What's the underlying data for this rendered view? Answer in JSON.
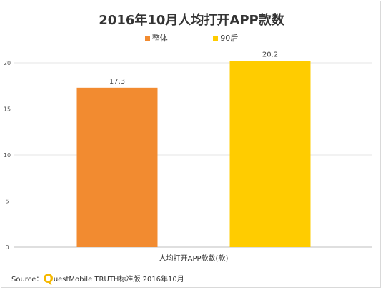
{
  "chart_data": {
    "type": "bar",
    "title": "2016年10月人均打开APP款数",
    "xlabel": "人均打开APP款数(款)",
    "ylabel": "",
    "ylim": [
      0,
      20
    ],
    "yticks": [
      0,
      5,
      10,
      15,
      20
    ],
    "grid": true,
    "legend_position": "top",
    "categories": [
      "人均打开APP款数(款)"
    ],
    "series": [
      {
        "name": "整体",
        "values": [
          17.3
        ],
        "color": "#f28b30"
      },
      {
        "name": "90后",
        "values": [
          20.2
        ],
        "color": "#ffcc00"
      }
    ]
  },
  "source": {
    "prefix": "Source：",
    "q_letter": "Q",
    "rest": "uestMobile TRUTH标准版 2016年10月"
  }
}
